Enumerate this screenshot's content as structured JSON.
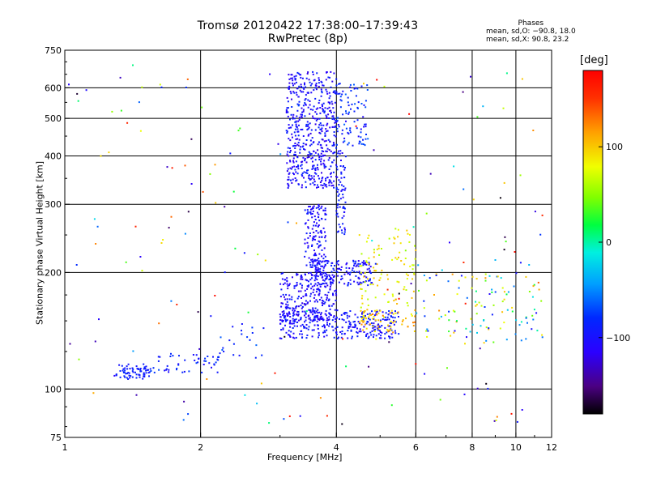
{
  "title_line1": "Tromsø 20120422 17:38:00–17:39:43",
  "title_line2": "RwPretec (8p)",
  "phases": {
    "title": "Phases",
    "line_o": "mean, sd,O: −90.8, 18.0",
    "line_x": "mean, sd,X:  90.8, 23.2"
  },
  "colorbar": {
    "label": "[deg]",
    "range": [
      -180,
      180
    ],
    "ticks": [
      {
        "value": 100,
        "label": "100"
      },
      {
        "value": 0,
        "label": "0"
      },
      {
        "value": -100,
        "label": "−100"
      }
    ]
  },
  "chart_data": {
    "type": "scatter",
    "xlabel": "Frequency [MHz]",
    "ylabel": "Stationary phase Virtual Height [km]",
    "xscale": "log",
    "yscale": "log",
    "xlim": [
      1,
      12
    ],
    "ylim": [
      75,
      750
    ],
    "grid": true,
    "x_ticks": [
      {
        "value": 1,
        "label": "1"
      },
      {
        "value": 2,
        "label": "2"
      },
      {
        "value": 4,
        "label": "4"
      },
      {
        "value": 6,
        "label": "6"
      },
      {
        "value": 8,
        "label": "8"
      },
      {
        "value": 10,
        "label": "10"
      },
      {
        "value": 12,
        "label": "12"
      }
    ],
    "y_ticks": [
      {
        "value": 75,
        "label": "75"
      },
      {
        "value": 100,
        "label": "100"
      },
      {
        "value": 200,
        "label": "200"
      },
      {
        "value": 300,
        "label": "300"
      },
      {
        "value": 400,
        "label": "400"
      },
      {
        "value": 500,
        "label": "500"
      },
      {
        "value": 600,
        "label": "600"
      },
      {
        "value": 750,
        "label": "750"
      }
    ],
    "y_grid": [
      100,
      200,
      300,
      400,
      500,
      600
    ],
    "x_grid": [
      2,
      4,
      6,
      8,
      10
    ],
    "point_groups": [
      {
        "desc": "sporadic E low trace",
        "f": [
          1.3,
          1.55
        ],
        "h": [
          106,
          116
        ],
        "n": 70,
        "phase": [
          -100,
          -80
        ]
      },
      {
        "desc": "sporadic E low trace 2",
        "f": [
          1.55,
          2.2
        ],
        "h": [
          110,
          124
        ],
        "n": 50,
        "phase": [
          -110,
          -70
        ]
      },
      {
        "desc": "sporadic E rising",
        "f": [
          2.2,
          2.8
        ],
        "h": [
          120,
          150
        ],
        "n": 20,
        "phase": [
          -100,
          -60
        ]
      },
      {
        "desc": "F1 O trace base",
        "f": [
          3.0,
          5.5
        ],
        "h": [
          135,
          160
        ],
        "n": 320,
        "phase": [
          -115,
          -80
        ]
      },
      {
        "desc": "F1 O trace lower",
        "f": [
          3.0,
          4.0
        ],
        "h": [
          150,
          200
        ],
        "n": 260,
        "phase": [
          -125,
          -85
        ]
      },
      {
        "desc": "F1 ledge",
        "f": [
          3.5,
          4.8
        ],
        "h": [
          185,
          215
        ],
        "n": 150,
        "phase": [
          -120,
          -80
        ]
      },
      {
        "desc": "F1 vertical",
        "f": [
          3.4,
          3.8
        ],
        "h": [
          200,
          300
        ],
        "n": 140,
        "phase": [
          -120,
          -85
        ]
      },
      {
        "desc": "F2 O trace cluster",
        "f": [
          3.1,
          4.0
        ],
        "h": [
          330,
          660
        ],
        "n": 520,
        "phase": [
          -125,
          -80
        ]
      },
      {
        "desc": "F2 side cluster",
        "f": [
          4.0,
          4.7
        ],
        "h": [
          420,
          620
        ],
        "n": 90,
        "phase": [
          -110,
          -60
        ]
      },
      {
        "desc": "F2 vertical column",
        "f": [
          4.0,
          4.2
        ],
        "h": [
          250,
          420
        ],
        "n": 70,
        "phase": [
          -110,
          -80
        ]
      },
      {
        "desc": "X trace",
        "f": [
          4.5,
          6.0
        ],
        "h": [
          150,
          260
        ],
        "n": 110,
        "phase": [
          60,
          110
        ]
      },
      {
        "desc": "X trace base",
        "f": [
          4.5,
          6.0
        ],
        "h": [
          140,
          160
        ],
        "n": 60,
        "phase": [
          80,
          130
        ]
      },
      {
        "desc": "high-freq scatter",
        "f": [
          6.0,
          11.5
        ],
        "h": [
          130,
          200
        ],
        "n": 110,
        "phase": [
          -110,
          120
        ]
      },
      {
        "desc": "noise",
        "f": [
          1.0,
          11.8
        ],
        "h": [
          80,
          700
        ],
        "n": 170,
        "phase": [
          -180,
          180
        ]
      }
    ]
  }
}
